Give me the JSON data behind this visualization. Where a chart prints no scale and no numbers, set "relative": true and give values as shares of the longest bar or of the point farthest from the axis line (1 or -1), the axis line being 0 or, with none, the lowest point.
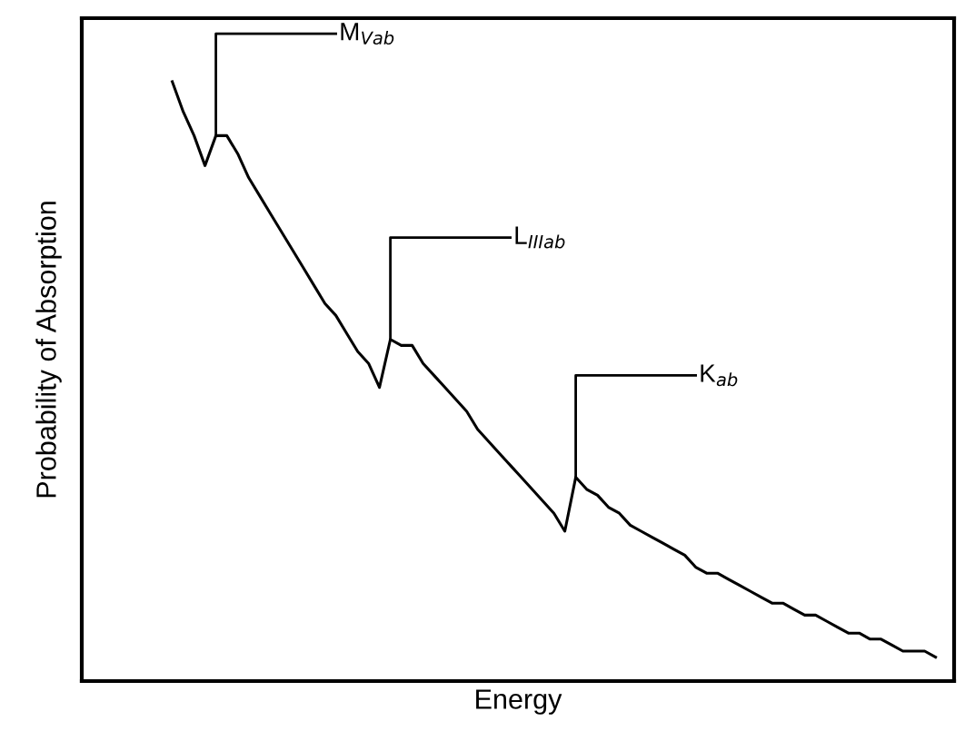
{
  "chart_data": {
    "type": "line",
    "relative": true,
    "xlabel": "Energy",
    "ylabel": "Probability of Absorption",
    "categories": [
      null,
      null,
      null,
      null,
      null,
      null,
      null,
      null,
      null,
      null,
      null,
      null,
      null,
      null,
      null,
      null,
      null,
      null,
      null,
      null,
      null,
      null,
      null,
      null,
      null,
      null,
      null,
      null,
      null,
      null,
      null,
      null,
      null,
      null,
      null,
      null,
      null,
      null,
      null,
      null,
      null,
      null,
      null,
      null,
      null,
      null,
      null,
      null,
      null,
      null,
      null,
      null,
      null,
      null,
      null,
      null,
      null,
      null,
      null,
      null,
      null,
      null,
      null,
      null,
      null,
      null,
      null,
      null,
      null,
      null,
      null
    ],
    "series": [
      {
        "color": "#000000",
        "values": [
          1.0,
          0.95,
          0.91,
          0.86,
          0.91,
          0.91,
          0.88,
          0.84,
          0.81,
          0.78,
          0.75,
          0.72,
          0.69,
          0.66,
          0.63,
          0.61,
          0.58,
          0.55,
          0.53,
          0.49,
          0.57,
          0.56,
          0.56,
          0.53,
          0.51,
          0.49,
          0.47,
          0.45,
          0.42,
          0.4,
          0.38,
          0.36,
          0.34,
          0.32,
          0.3,
          0.28,
          0.25,
          0.34,
          0.32,
          0.31,
          0.29,
          0.28,
          0.26,
          0.25,
          0.24,
          0.23,
          0.22,
          0.21,
          0.19,
          0.18,
          0.18,
          0.17,
          0.16,
          0.15,
          0.14,
          0.13,
          0.13,
          0.12,
          0.11,
          0.11,
          0.1,
          0.09,
          0.08,
          0.08,
          0.07,
          0.07,
          0.06,
          0.05,
          0.05,
          0.05,
          0.04
        ]
      }
    ],
    "annotations": [
      "M$_{Vab}$",
      "L$_{IIIab}$",
      "K$_{ab}$"
    ],
    "legend": false,
    "marker": "none",
    "line_style": "solid"
  }
}
